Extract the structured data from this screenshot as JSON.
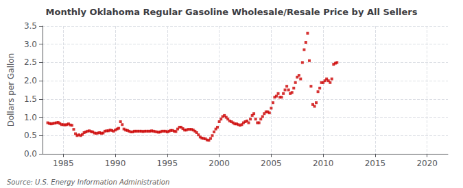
{
  "chart_data": {
    "type": "scatter",
    "title": "Monthly Oklahoma Regular Gasoline Wholesale/Resale Price by All Sellers",
    "ylabel": "Dollars per Gallon",
    "annotations": [
      "Source: U.S. Energy Information Administration"
    ],
    "color": "#cc0000",
    "marker": "square",
    "grid": true,
    "xlim": [
      1983.0,
      2022.0
    ],
    "ylim": [
      0.0,
      3.5
    ],
    "xticks": [
      1985,
      1990,
      1995,
      2000,
      2005,
      2010,
      2015,
      2020
    ],
    "yticks": [
      {
        "value": 0.0,
        "label": "0.0"
      },
      0.5,
      {
        "value": 1.0,
        "label": "1.0"
      },
      1.5,
      {
        "value": 2.0,
        "label": "2.0"
      },
      2.5,
      {
        "value": 3.0,
        "label": "3.0"
      },
      3.5
    ],
    "x": [
      1983.5,
      1983.67,
      1983.83,
      1984.0,
      1984.17,
      1984.33,
      1984.5,
      1984.67,
      1984.83,
      1985.0,
      1985.17,
      1985.33,
      1985.5,
      1985.67,
      1985.83,
      1986.0,
      1986.17,
      1986.33,
      1986.5,
      1986.67,
      1986.83,
      1987.0,
      1987.17,
      1987.33,
      1987.5,
      1987.67,
      1987.83,
      1988.0,
      1988.17,
      1988.33,
      1988.5,
      1988.67,
      1988.83,
      1989.0,
      1989.17,
      1989.33,
      1989.5,
      1989.67,
      1989.83,
      1990.0,
      1990.17,
      1990.33,
      1990.5,
      1990.67,
      1990.83,
      1991.0,
      1991.17,
      1991.33,
      1991.5,
      1991.67,
      1991.83,
      1992.0,
      1992.17,
      1992.33,
      1992.5,
      1992.67,
      1992.83,
      1993.0,
      1993.17,
      1993.33,
      1993.5,
      1993.67,
      1993.83,
      1994.0,
      1994.17,
      1994.33,
      1994.5,
      1994.67,
      1994.83,
      1995.0,
      1995.17,
      1995.33,
      1995.5,
      1995.67,
      1995.83,
      1996.0,
      1996.17,
      1996.33,
      1996.5,
      1996.67,
      1996.83,
      1997.0,
      1997.17,
      1997.33,
      1997.5,
      1997.67,
      1997.83,
      1998.0,
      1998.17,
      1998.33,
      1998.5,
      1998.67,
      1998.83,
      1999.0,
      1999.17,
      1999.33,
      1999.5,
      1999.67,
      1999.83,
      2000.0,
      2000.17,
      2000.33,
      2000.5,
      2000.67,
      2000.83,
      2001.0,
      2001.17,
      2001.33,
      2001.5,
      2001.67,
      2001.83,
      2002.0,
      2002.17,
      2002.33,
      2002.5,
      2002.67,
      2002.83,
      2003.0,
      2003.17,
      2003.33,
      2003.5,
      2003.67,
      2003.83,
      2004.0,
      2004.17,
      2004.33,
      2004.5,
      2004.67,
      2004.83,
      2005.0,
      2005.17,
      2005.33,
      2005.5,
      2005.67,
      2005.83,
      2006.0,
      2006.17,
      2006.33,
      2006.5,
      2006.67,
      2006.83,
      2007.0,
      2007.17,
      2007.33,
      2007.5,
      2007.67,
      2007.83,
      2008.0,
      2008.17,
      2008.33,
      2008.5,
      2008.67,
      2008.83,
      2009.0,
      2009.17,
      2009.33,
      2009.5,
      2009.67,
      2009.83,
      2010.0,
      2010.17,
      2010.33,
      2010.5,
      2010.67,
      2010.83,
      2011.0,
      2011.17,
      2011.33
    ],
    "values": [
      0.85,
      0.83,
      0.82,
      0.83,
      0.84,
      0.85,
      0.86,
      0.83,
      0.8,
      0.8,
      0.79,
      0.8,
      0.82,
      0.79,
      0.78,
      0.67,
      0.55,
      0.5,
      0.52,
      0.5,
      0.53,
      0.58,
      0.6,
      0.62,
      0.63,
      0.61,
      0.6,
      0.57,
      0.56,
      0.57,
      0.58,
      0.56,
      0.57,
      0.62,
      0.63,
      0.63,
      0.65,
      0.64,
      0.62,
      0.65,
      0.68,
      0.7,
      0.88,
      0.8,
      0.68,
      0.65,
      0.64,
      0.62,
      0.6,
      0.6,
      0.62,
      0.62,
      0.62,
      0.62,
      0.62,
      0.61,
      0.62,
      0.62,
      0.62,
      0.62,
      0.63,
      0.62,
      0.61,
      0.6,
      0.59,
      0.6,
      0.62,
      0.62,
      0.62,
      0.6,
      0.62,
      0.64,
      0.64,
      0.62,
      0.61,
      0.68,
      0.73,
      0.73,
      0.69,
      0.65,
      0.65,
      0.67,
      0.67,
      0.67,
      0.65,
      0.62,
      0.58,
      0.52,
      0.46,
      0.43,
      0.42,
      0.41,
      0.38,
      0.37,
      0.42,
      0.5,
      0.6,
      0.68,
      0.73,
      0.88,
      0.95,
      1.02,
      1.05,
      1.0,
      0.95,
      0.9,
      0.88,
      0.85,
      0.82,
      0.82,
      0.8,
      0.78,
      0.8,
      0.85,
      0.88,
      0.9,
      0.85,
      0.95,
      1.05,
      1.1,
      0.95,
      0.85,
      0.85,
      0.95,
      1.02,
      1.1,
      1.15,
      1.15,
      1.12,
      1.25,
      1.4,
      1.55,
      1.58,
      1.65,
      1.55,
      1.55,
      1.65,
      1.75,
      1.85,
      1.75,
      1.65,
      1.68,
      1.8,
      1.95,
      2.1,
      2.15,
      2.05,
      2.5,
      2.85,
      3.05,
      3.3,
      2.55,
      1.85,
      1.35,
      1.3,
      1.4,
      1.7,
      1.8,
      1.95,
      1.95,
      2.0,
      2.05,
      2.0,
      1.95,
      2.05,
      2.45,
      2.48,
      2.5
    ]
  }
}
